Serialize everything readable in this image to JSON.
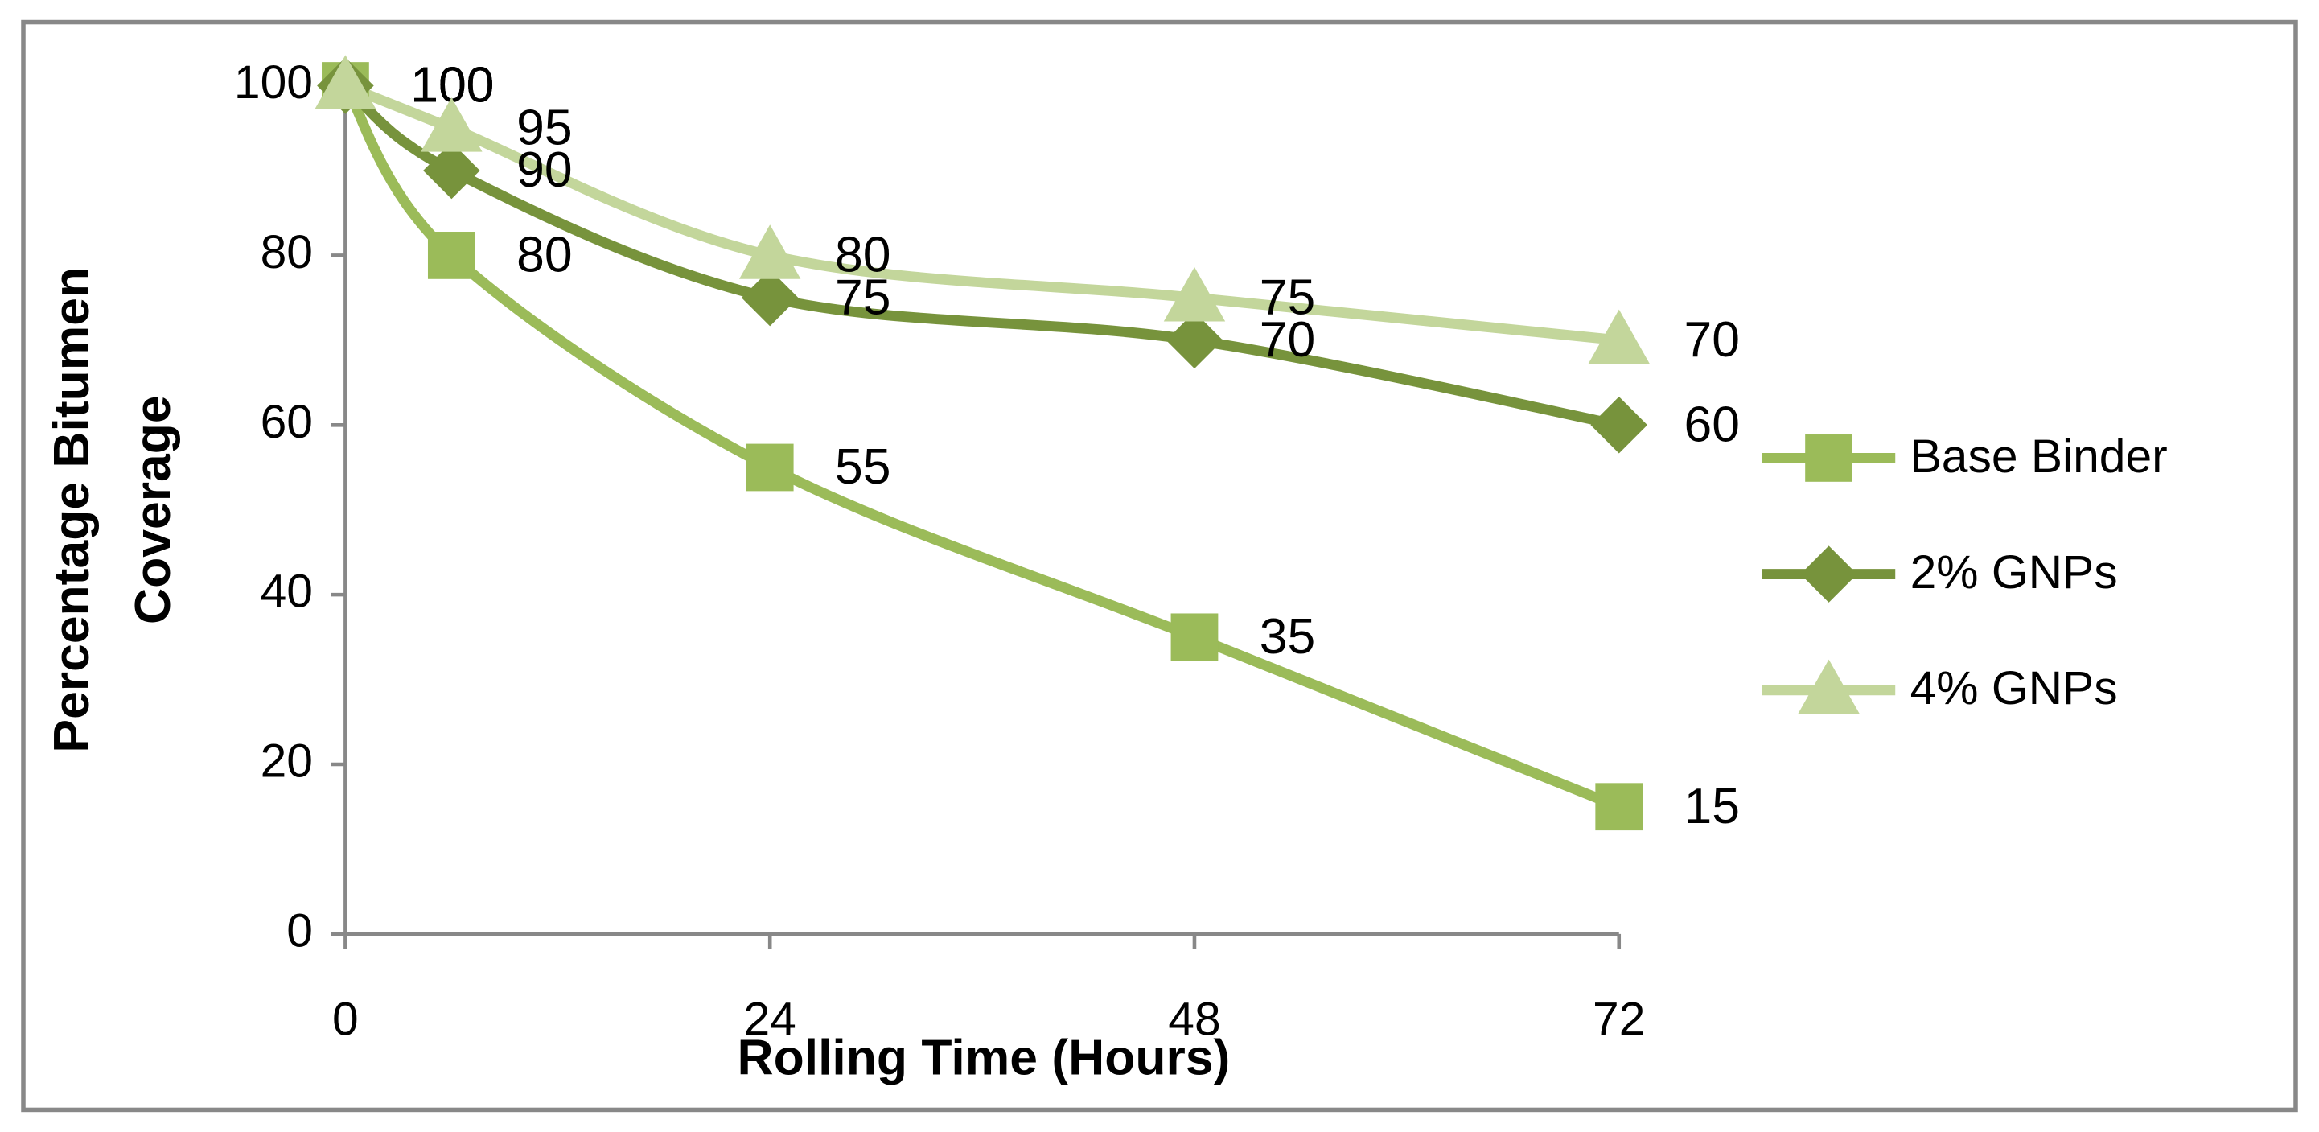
{
  "chart_data": {
    "type": "line",
    "x_label": "Rolling Time (Hours)",
    "y_label": [
      "Percentage Bitumen",
      "Coverage"
    ],
    "x": [
      0,
      6,
      24,
      48,
      72
    ],
    "series": [
      {
        "name": "Base Binder",
        "color": "#9bbb59",
        "marker": "square",
        "values": [
          100,
          80,
          55,
          35,
          15
        ]
      },
      {
        "name": "2% GNPs",
        "color": "#77933c",
        "marker": "diamond",
        "values": [
          100,
          90,
          75,
          70,
          60
        ]
      },
      {
        "name": "4% GNPs",
        "color": "#c3d69b",
        "marker": "triangle",
        "values": [
          100,
          95,
          80,
          75,
          70
        ]
      }
    ],
    "xlim": [
      0,
      72
    ],
    "xticks": [
      0,
      24,
      48,
      72
    ],
    "ylim": [
      0,
      100
    ],
    "yticks": [
      0,
      20,
      40,
      60,
      80,
      100
    ],
    "smooth": true,
    "grid": false,
    "legend": "right"
  }
}
